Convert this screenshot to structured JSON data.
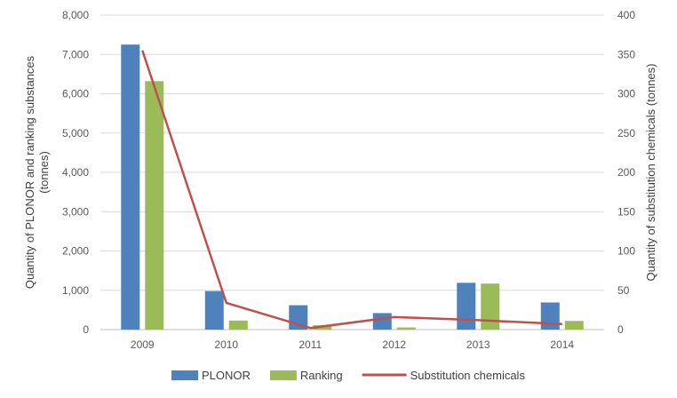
{
  "chart_data": {
    "type": "bar",
    "categories": [
      "2009",
      "2010",
      "2011",
      "2012",
      "2013",
      "2014"
    ],
    "series": [
      {
        "name": "PLONOR",
        "kind": "bar",
        "axis": "left",
        "color": "#4f81bd",
        "values": [
          7250,
          980,
          620,
          420,
          1190,
          690
        ]
      },
      {
        "name": "Ranking",
        "kind": "bar",
        "axis": "left",
        "color": "#9bbb59",
        "values": [
          6320,
          230,
          110,
          55,
          1170,
          220
        ]
      },
      {
        "name": "Substitution chemicals",
        "kind": "line",
        "axis": "right",
        "color": "#c0504d",
        "values": [
          355,
          34,
          2,
          16,
          12,
          7
        ]
      }
    ],
    "ylabel_left": "Quantity of PLONOR and ranking substances (tonnes)",
    "ylabel_left_lines": [
      "Quantity of PLONOR and ranking substances",
      "(tonnes)"
    ],
    "ylabel_right": "Quantity of substitution chemicals (tonnes)",
    "ylim_left": [
      0,
      8000
    ],
    "ylim_right": [
      0,
      400
    ],
    "yticks_left": [
      "0",
      "1,000",
      "2,000",
      "3,000",
      "4,000",
      "5,000",
      "6,000",
      "7,000",
      "8,000"
    ],
    "yticks_right": [
      "0",
      "50",
      "100",
      "150",
      "200",
      "250",
      "300",
      "350",
      "400"
    ],
    "grid": true,
    "legend_position": "bottom"
  }
}
